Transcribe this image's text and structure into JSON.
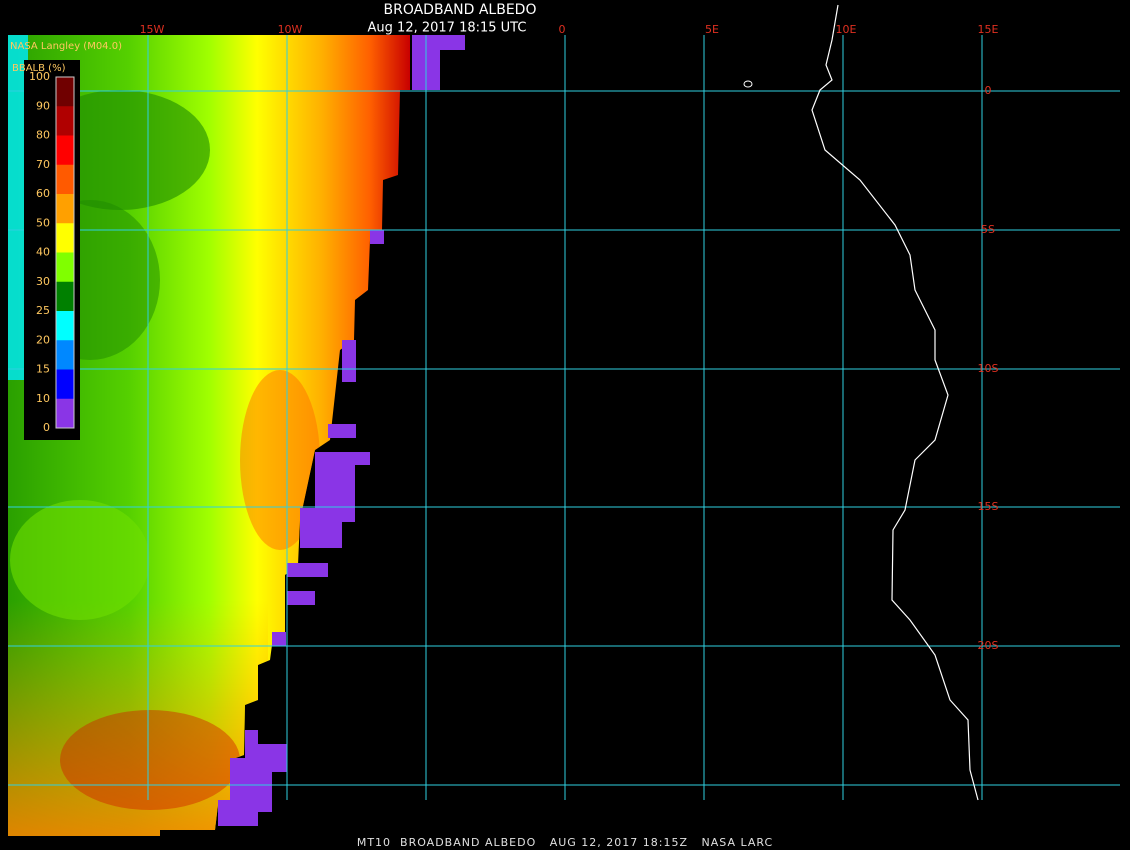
{
  "header": {
    "title": "BROADBAND ALBEDO",
    "subtitle": "Aug 12, 2017 18:15 UTC",
    "producer": "NASA Langley (M04.0)"
  },
  "legend": {
    "title": "BBALB (%)",
    "labels": [
      "100",
      "90",
      "80",
      "70",
      "60",
      "50",
      "40",
      "30",
      "25",
      "20",
      "15",
      "10",
      "0"
    ],
    "colors": [
      "#700000",
      "#b00000",
      "#ff0000",
      "#ff5a00",
      "#ffa000",
      "#ffff00",
      "#80ff00",
      "#008000",
      "#00ffff",
      "#0088ff",
      "#0000ff",
      "#8a35e6"
    ]
  },
  "grid": {
    "lon_labels": [
      "15W",
      "10W",
      "0",
      "5E",
      "10E",
      "15E"
    ],
    "lat_labels": [
      "0",
      "5S",
      "10S",
      "15S",
      "20S"
    ]
  },
  "footer": "MT10  BROADBAND ALBEDO   AUG 12, 2017 18:15Z   NASA LARC"
}
